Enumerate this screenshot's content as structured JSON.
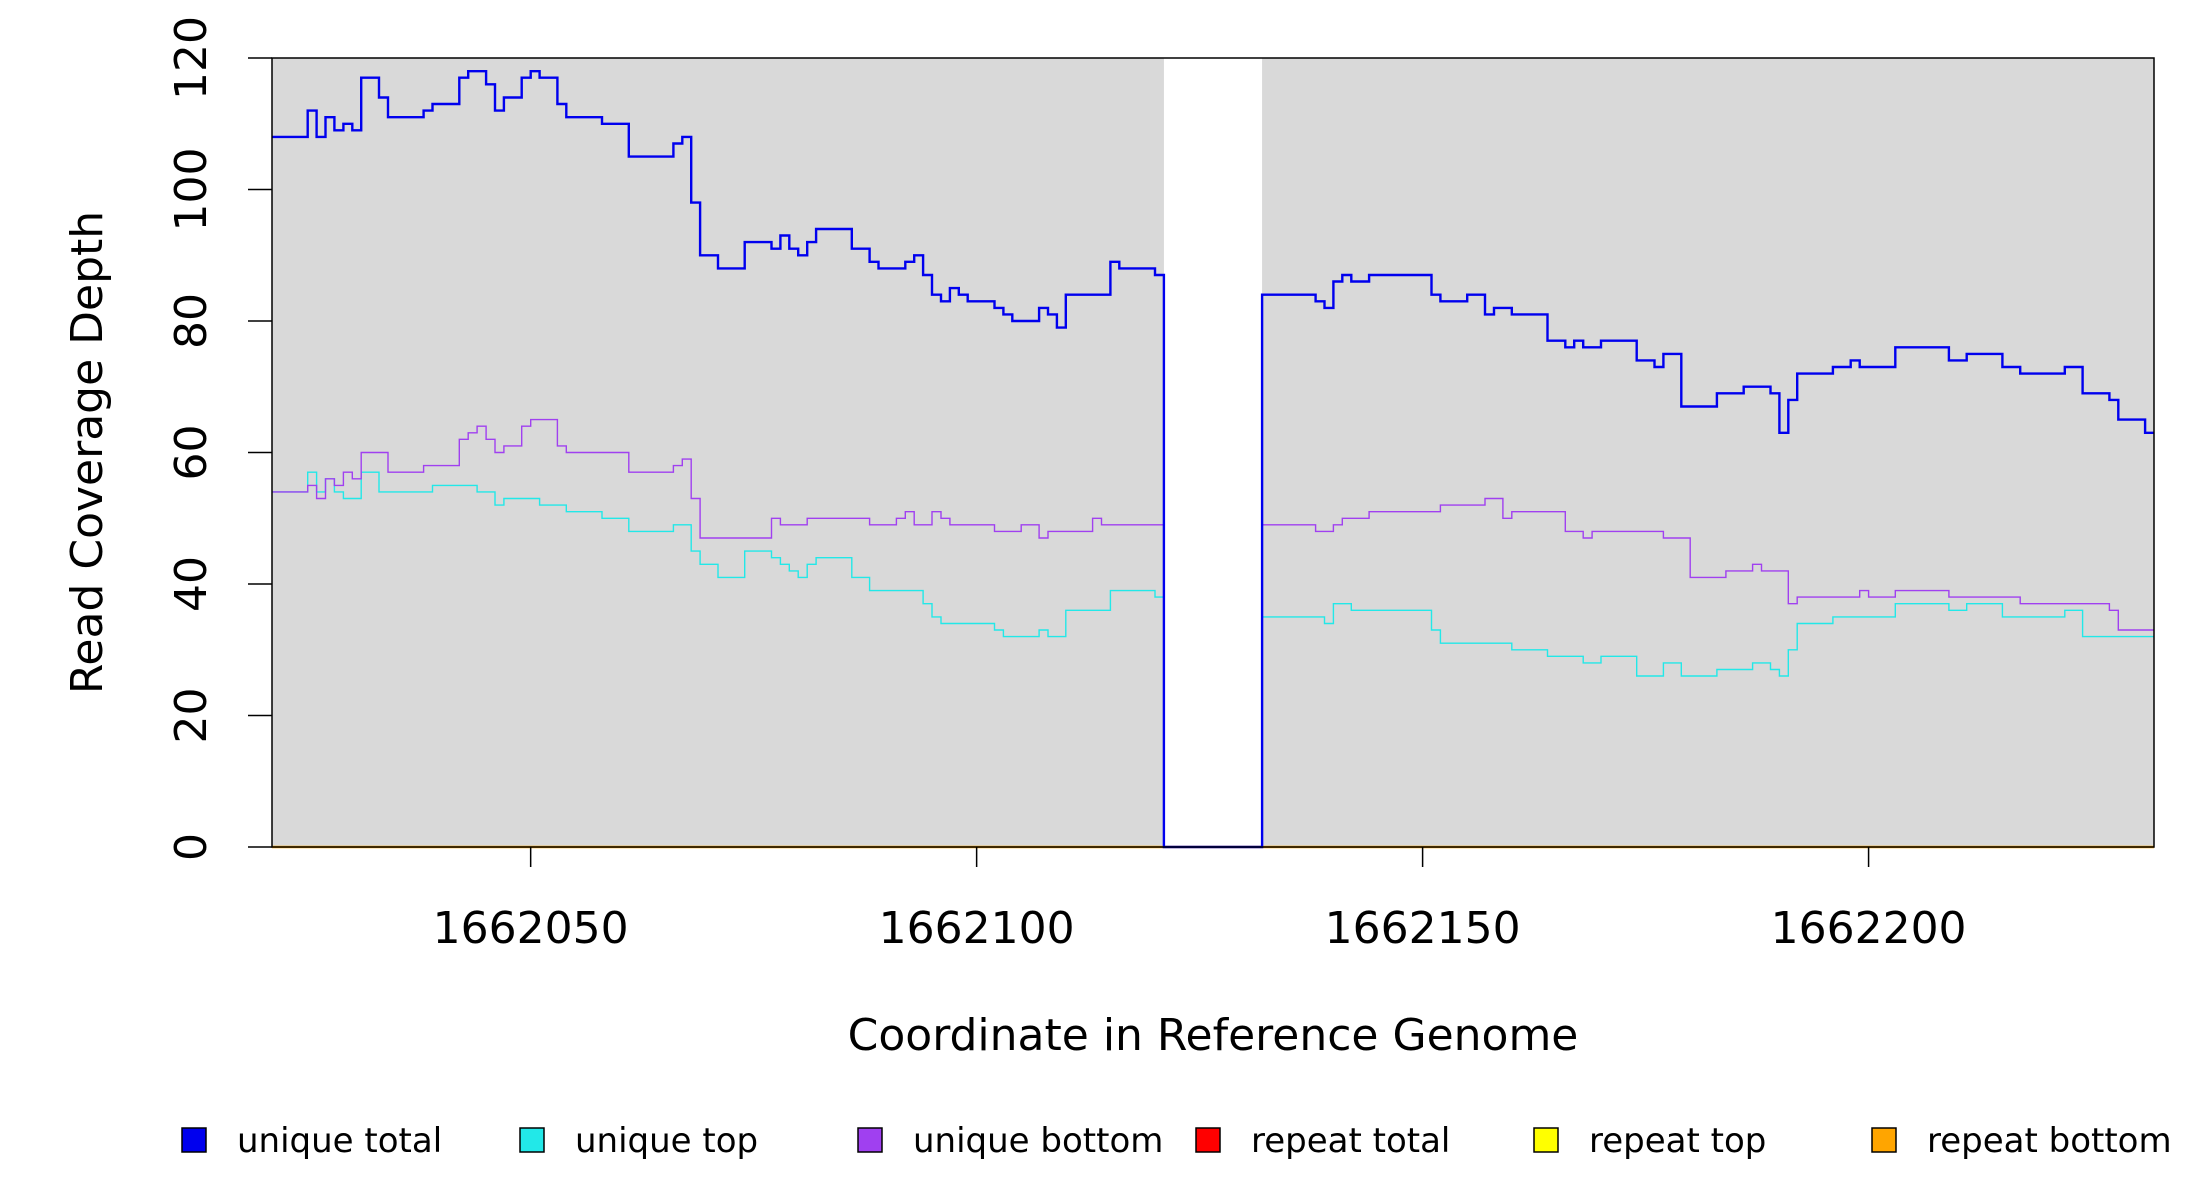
{
  "chart_data": {
    "type": "line",
    "title": "",
    "xlabel": "Coordinate in Reference Genome",
    "ylabel": "Read Coverage Depth",
    "xlim": [
      1662021,
      1662232
    ],
    "ylim": [
      0,
      120
    ],
    "x_ticks": [
      1662050,
      1662100,
      1662150,
      1662200
    ],
    "x_tick_labels": [
      "1662050",
      "1662100",
      "1662150",
      "1662200"
    ],
    "y_ticks": [
      0,
      20,
      40,
      60,
      80,
      100,
      120
    ],
    "y_tick_labels": [
      "0",
      "20",
      "40",
      "60",
      "80",
      "100",
      "120"
    ],
    "shaded_regions": [
      {
        "from": 1662021,
        "to": 1662121,
        "color": "#d9d9d9"
      },
      {
        "from": 1662132,
        "to": 1662232,
        "color": "#d9d9d9"
      }
    ],
    "grid": false,
    "legend_position": "bottom",
    "series": [
      {
        "name": "unique total",
        "color": "#0000ee",
        "line_width": 2.4,
        "points": [
          [
            1662021,
            108
          ],
          [
            1662025,
            112
          ],
          [
            1662026,
            108
          ],
          [
            1662027,
            111
          ],
          [
            1662028,
            109
          ],
          [
            1662029,
            110
          ],
          [
            1662030,
            109
          ],
          [
            1662031,
            117
          ],
          [
            1662033,
            114
          ],
          [
            1662034,
            111
          ],
          [
            1662038,
            112
          ],
          [
            1662039,
            113
          ],
          [
            1662042,
            117
          ],
          [
            1662043,
            118
          ],
          [
            1662045,
            116
          ],
          [
            1662046,
            112
          ],
          [
            1662047,
            114
          ],
          [
            1662049,
            117
          ],
          [
            1662050,
            118
          ],
          [
            1662051,
            117
          ],
          [
            1662053,
            113
          ],
          [
            1662054,
            111
          ],
          [
            1662058,
            110
          ],
          [
            1662061,
            105
          ],
          [
            1662066,
            107
          ],
          [
            1662067,
            108
          ],
          [
            1662068,
            98
          ],
          [
            1662069,
            90
          ],
          [
            1662071,
            88
          ],
          [
            1662074,
            92
          ],
          [
            1662077,
            91
          ],
          [
            1662078,
            93
          ],
          [
            1662079,
            91
          ],
          [
            1662080,
            90
          ],
          [
            1662081,
            92
          ],
          [
            1662082,
            94
          ],
          [
            1662086,
            91
          ],
          [
            1662088,
            89
          ],
          [
            1662089,
            88
          ],
          [
            1662092,
            89
          ],
          [
            1662093,
            90
          ],
          [
            1662094,
            87
          ],
          [
            1662095,
            84
          ],
          [
            1662096,
            83
          ],
          [
            1662097,
            85
          ],
          [
            1662098,
            84
          ],
          [
            1662099,
            83
          ],
          [
            1662102,
            82
          ],
          [
            1662103,
            81
          ],
          [
            1662104,
            80
          ],
          [
            1662107,
            82
          ],
          [
            1662108,
            81
          ],
          [
            1662109,
            79
          ],
          [
            1662110,
            84
          ],
          [
            1662115,
            89
          ],
          [
            1662116,
            88
          ],
          [
            1662120,
            87
          ],
          [
            1662121,
            0
          ],
          [
            1662132,
            84
          ],
          [
            1662138,
            83
          ],
          [
            1662139,
            82
          ],
          [
            1662140,
            86
          ],
          [
            1662141,
            87
          ],
          [
            1662142,
            86
          ],
          [
            1662144,
            87
          ],
          [
            1662151,
            84
          ],
          [
            1662152,
            83
          ],
          [
            1662155,
            84
          ],
          [
            1662157,
            81
          ],
          [
            1662158,
            82
          ],
          [
            1662160,
            81
          ],
          [
            1662164,
            77
          ],
          [
            1662166,
            76
          ],
          [
            1662167,
            77
          ],
          [
            1662168,
            76
          ],
          [
            1662170,
            77
          ],
          [
            1662174,
            74
          ],
          [
            1662176,
            73
          ],
          [
            1662177,
            75
          ],
          [
            1662179,
            67
          ],
          [
            1662183,
            69
          ],
          [
            1662186,
            70
          ],
          [
            1662189,
            69
          ],
          [
            1662190,
            63
          ],
          [
            1662191,
            68
          ],
          [
            1662192,
            72
          ],
          [
            1662196,
            73
          ],
          [
            1662198,
            74
          ],
          [
            1662199,
            73
          ],
          [
            1662203,
            76
          ],
          [
            1662209,
            74
          ],
          [
            1662211,
            75
          ],
          [
            1662215,
            73
          ],
          [
            1662217,
            72
          ],
          [
            1662222,
            73
          ],
          [
            1662224,
            69
          ],
          [
            1662227,
            68
          ],
          [
            1662228,
            65
          ],
          [
            1662231,
            63
          ],
          [
            1662232,
            63
          ]
        ]
      },
      {
        "name": "unique top",
        "color": "#22e8e8",
        "line_width": 1.4,
        "points": [
          [
            1662021,
            54
          ],
          [
            1662025,
            57
          ],
          [
            1662026,
            54
          ],
          [
            1662027,
            56
          ],
          [
            1662028,
            54
          ],
          [
            1662029,
            53
          ],
          [
            1662031,
            57
          ],
          [
            1662033,
            54
          ],
          [
            1662039,
            55
          ],
          [
            1662044,
            54
          ],
          [
            1662046,
            52
          ],
          [
            1662047,
            53
          ],
          [
            1662051,
            52
          ],
          [
            1662054,
            51
          ],
          [
            1662058,
            50
          ],
          [
            1662061,
            48
          ],
          [
            1662066,
            49
          ],
          [
            1662068,
            45
          ],
          [
            1662069,
            43
          ],
          [
            1662071,
            41
          ],
          [
            1662074,
            45
          ],
          [
            1662077,
            44
          ],
          [
            1662078,
            43
          ],
          [
            1662079,
            42
          ],
          [
            1662080,
            41
          ],
          [
            1662081,
            43
          ],
          [
            1662082,
            44
          ],
          [
            1662086,
            41
          ],
          [
            1662088,
            39
          ],
          [
            1662094,
            37
          ],
          [
            1662095,
            35
          ],
          [
            1662096,
            34
          ],
          [
            1662102,
            33
          ],
          [
            1662103,
            32
          ],
          [
            1662107,
            33
          ],
          [
            1662108,
            32
          ],
          [
            1662110,
            36
          ],
          [
            1662115,
            39
          ],
          [
            1662120,
            38
          ],
          [
            1662121,
            0
          ],
          [
            1662132,
            35
          ],
          [
            1662139,
            34
          ],
          [
            1662140,
            37
          ],
          [
            1662142,
            36
          ],
          [
            1662151,
            33
          ],
          [
            1662152,
            31
          ],
          [
            1662160,
            30
          ],
          [
            1662164,
            29
          ],
          [
            1662168,
            28
          ],
          [
            1662170,
            29
          ],
          [
            1662174,
            26
          ],
          [
            1662177,
            28
          ],
          [
            1662179,
            26
          ],
          [
            1662183,
            27
          ],
          [
            1662187,
            28
          ],
          [
            1662189,
            27
          ],
          [
            1662190,
            26
          ],
          [
            1662191,
            30
          ],
          [
            1662192,
            34
          ],
          [
            1662196,
            35
          ],
          [
            1662203,
            37
          ],
          [
            1662209,
            36
          ],
          [
            1662211,
            37
          ],
          [
            1662215,
            35
          ],
          [
            1662222,
            36
          ],
          [
            1662224,
            32
          ],
          [
            1662231,
            32
          ],
          [
            1662232,
            32
          ]
        ]
      },
      {
        "name": "unique bottom",
        "color": "#a040f0",
        "line_width": 1.4,
        "points": [
          [
            1662021,
            54
          ],
          [
            1662025,
            55
          ],
          [
            1662026,
            53
          ],
          [
            1662027,
            56
          ],
          [
            1662028,
            55
          ],
          [
            1662029,
            57
          ],
          [
            1662030,
            56
          ],
          [
            1662031,
            60
          ],
          [
            1662034,
            57
          ],
          [
            1662038,
            58
          ],
          [
            1662042,
            62
          ],
          [
            1662043,
            63
          ],
          [
            1662044,
            64
          ],
          [
            1662045,
            62
          ],
          [
            1662046,
            60
          ],
          [
            1662047,
            61
          ],
          [
            1662049,
            64
          ],
          [
            1662050,
            65
          ],
          [
            1662053,
            61
          ],
          [
            1662054,
            60
          ],
          [
            1662061,
            57
          ],
          [
            1662066,
            58
          ],
          [
            1662067,
            59
          ],
          [
            1662068,
            53
          ],
          [
            1662069,
            47
          ],
          [
            1662077,
            50
          ],
          [
            1662078,
            49
          ],
          [
            1662081,
            50
          ],
          [
            1662088,
            49
          ],
          [
            1662091,
            50
          ],
          [
            1662092,
            51
          ],
          [
            1662093,
            49
          ],
          [
            1662095,
            51
          ],
          [
            1662096,
            50
          ],
          [
            1662097,
            49
          ],
          [
            1662102,
            48
          ],
          [
            1662105,
            49
          ],
          [
            1662107,
            47
          ],
          [
            1662108,
            48
          ],
          [
            1662113,
            50
          ],
          [
            1662114,
            49
          ],
          [
            1662120,
            49
          ],
          [
            1662121,
            0
          ],
          [
            1662132,
            49
          ],
          [
            1662138,
            48
          ],
          [
            1662140,
            49
          ],
          [
            1662141,
            50
          ],
          [
            1662144,
            51
          ],
          [
            1662152,
            52
          ],
          [
            1662157,
            53
          ],
          [
            1662159,
            50
          ],
          [
            1662160,
            51
          ],
          [
            1662166,
            48
          ],
          [
            1662168,
            47
          ],
          [
            1662169,
            48
          ],
          [
            1662177,
            47
          ],
          [
            1662180,
            41
          ],
          [
            1662184,
            42
          ],
          [
            1662187,
            43
          ],
          [
            1662188,
            42
          ],
          [
            1662191,
            37
          ],
          [
            1662192,
            38
          ],
          [
            1662199,
            39
          ],
          [
            1662200,
            38
          ],
          [
            1662203,
            39
          ],
          [
            1662209,
            38
          ],
          [
            1662217,
            37
          ],
          [
            1662227,
            36
          ],
          [
            1662228,
            33
          ],
          [
            1662231,
            33
          ],
          [
            1662232,
            33
          ]
        ]
      },
      {
        "name": "repeat total",
        "color": "#ff0000",
        "line_width": 1.4,
        "points": [
          [
            1662021,
            0
          ],
          [
            1662232,
            0
          ]
        ]
      },
      {
        "name": "repeat top",
        "color": "#ffff00",
        "line_width": 1.4,
        "points": [
          [
            1662021,
            0
          ],
          [
            1662232,
            0
          ]
        ]
      },
      {
        "name": "repeat bottom",
        "color": "#ffa500",
        "line_width": 2.4,
        "points": [
          [
            1662021,
            0
          ],
          [
            1662232,
            0
          ]
        ]
      }
    ]
  }
}
